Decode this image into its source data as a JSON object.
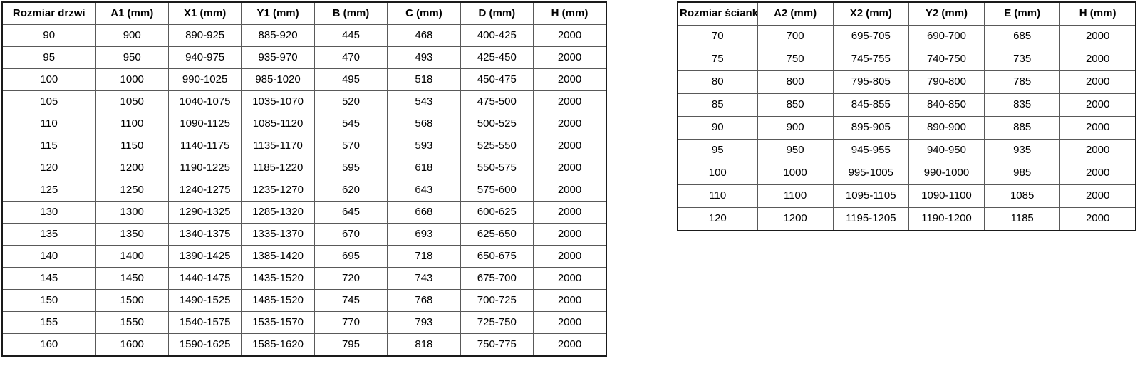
{
  "colors": {
    "background": "#ffffff",
    "text": "#000000",
    "outer_border": "#1a1a1a",
    "inner_border": "#595959"
  },
  "tables": {
    "doors": {
      "title": "door-sizes-table",
      "headers": [
        "Rozmiar drzwi",
        "A1 (mm)",
        "X1 (mm)",
        "Y1 (mm)",
        "B (mm)",
        "C (mm)",
        "D (mm)",
        "H (mm)"
      ],
      "rows": [
        [
          "90",
          "900",
          "890-925",
          "885-920",
          "445",
          "468",
          "400-425",
          "2000"
        ],
        [
          "95",
          "950",
          "940-975",
          "935-970",
          "470",
          "493",
          "425-450",
          "2000"
        ],
        [
          "100",
          "1000",
          "990-1025",
          "985-1020",
          "495",
          "518",
          "450-475",
          "2000"
        ],
        [
          "105",
          "1050",
          "1040-1075",
          "1035-1070",
          "520",
          "543",
          "475-500",
          "2000"
        ],
        [
          "110",
          "1100",
          "1090-1125",
          "1085-1120",
          "545",
          "568",
          "500-525",
          "2000"
        ],
        [
          "115",
          "1150",
          "1140-1175",
          "1135-1170",
          "570",
          "593",
          "525-550",
          "2000"
        ],
        [
          "120",
          "1200",
          "1190-1225",
          "1185-1220",
          "595",
          "618",
          "550-575",
          "2000"
        ],
        [
          "125",
          "1250",
          "1240-1275",
          "1235-1270",
          "620",
          "643",
          "575-600",
          "2000"
        ],
        [
          "130",
          "1300",
          "1290-1325",
          "1285-1320",
          "645",
          "668",
          "600-625",
          "2000"
        ],
        [
          "135",
          "1350",
          "1340-1375",
          "1335-1370",
          "670",
          "693",
          "625-650",
          "2000"
        ],
        [
          "140",
          "1400",
          "1390-1425",
          "1385-1420",
          "695",
          "718",
          "650-675",
          "2000"
        ],
        [
          "145",
          "1450",
          "1440-1475",
          "1435-1520",
          "720",
          "743",
          "675-700",
          "2000"
        ],
        [
          "150",
          "1500",
          "1490-1525",
          "1485-1520",
          "745",
          "768",
          "700-725",
          "2000"
        ],
        [
          "155",
          "1550",
          "1540-1575",
          "1535-1570",
          "770",
          "793",
          "725-750",
          "2000"
        ],
        [
          "160",
          "1600",
          "1590-1625",
          "1585-1620",
          "795",
          "818",
          "750-775",
          "2000"
        ]
      ]
    },
    "walls": {
      "title": "wall-sizes-table",
      "headers": [
        "Rozmiar ścianki",
        "A2 (mm)",
        "X2 (mm)",
        "Y2 (mm)",
        "E (mm)",
        "H (mm)"
      ],
      "rows": [
        [
          "70",
          "700",
          "695-705",
          "690-700",
          "685",
          "2000"
        ],
        [
          "75",
          "750",
          "745-755",
          "740-750",
          "735",
          "2000"
        ],
        [
          "80",
          "800",
          "795-805",
          "790-800",
          "785",
          "2000"
        ],
        [
          "85",
          "850",
          "845-855",
          "840-850",
          "835",
          "2000"
        ],
        [
          "90",
          "900",
          "895-905",
          "890-900",
          "885",
          "2000"
        ],
        [
          "95",
          "950",
          "945-955",
          "940-950",
          "935",
          "2000"
        ],
        [
          "100",
          "1000",
          "995-1005",
          "990-1000",
          "985",
          "2000"
        ],
        [
          "110",
          "1100",
          "1095-1105",
          "1090-1100",
          "1085",
          "2000"
        ],
        [
          "120",
          "1200",
          "1195-1205",
          "1190-1200",
          "1185",
          "2000"
        ]
      ]
    }
  }
}
